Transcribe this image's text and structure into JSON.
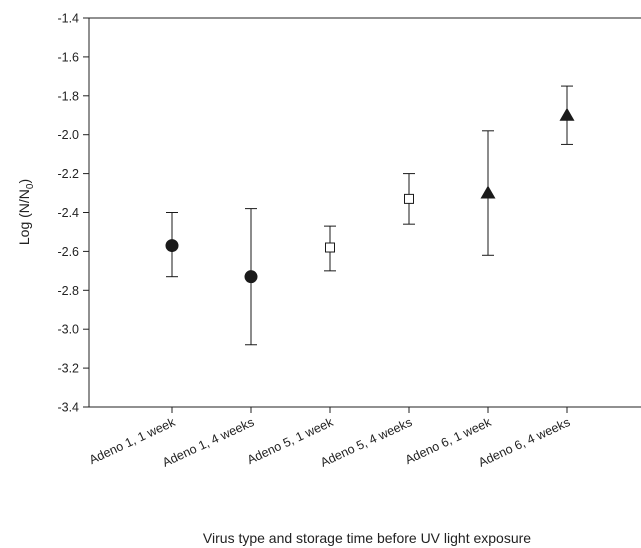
{
  "chart_data": {
    "type": "scatter",
    "title": "",
    "xlabel": "Virus type and storage time before UV light exposure",
    "ylabel_main": "Log (N/N",
    "ylabel_sub": "0",
    "ylabel_end": ")",
    "ylim": [
      -3.4,
      -1.4
    ],
    "yticks": [
      "-1.4",
      "-1.6",
      "-1.8",
      "-2.0",
      "-2.2",
      "-2.4",
      "-2.6",
      "-2.8",
      "-3.0",
      "-3.2",
      "-3.4"
    ],
    "categories": [
      "Adeno 1, 1 week",
      "Adeno 1, 4 weeks",
      "Adeno 5, 1 week",
      "Adeno 5, 4 weeks",
      "Adeno 6, 1 week",
      "Adeno 6, 4 weeks"
    ],
    "points": [
      {
        "category": "Adeno 1, 1 week",
        "y": -2.57,
        "err_high": -2.4,
        "err_low": -2.73,
        "marker": "filled-circle"
      },
      {
        "category": "Adeno 1, 4 weeks",
        "y": -2.73,
        "err_high": -2.38,
        "err_low": -3.08,
        "marker": "filled-circle"
      },
      {
        "category": "Adeno 5, 1 week",
        "y": -2.58,
        "err_high": -2.47,
        "err_low": -2.7,
        "marker": "open-square"
      },
      {
        "category": "Adeno 5, 4 weeks",
        "y": -2.33,
        "err_high": -2.2,
        "err_low": -2.46,
        "marker": "open-square"
      },
      {
        "category": "Adeno 6, 1 week",
        "y": -2.3,
        "err_high": -1.98,
        "err_low": -2.62,
        "marker": "filled-triangle"
      },
      {
        "category": "Adeno 6, 4 weeks",
        "y": -1.9,
        "err_high": -1.75,
        "err_low": -2.05,
        "marker": "filled-triangle"
      }
    ],
    "grid": false,
    "legend": "none",
    "marker_color": "#1a1a1a"
  }
}
